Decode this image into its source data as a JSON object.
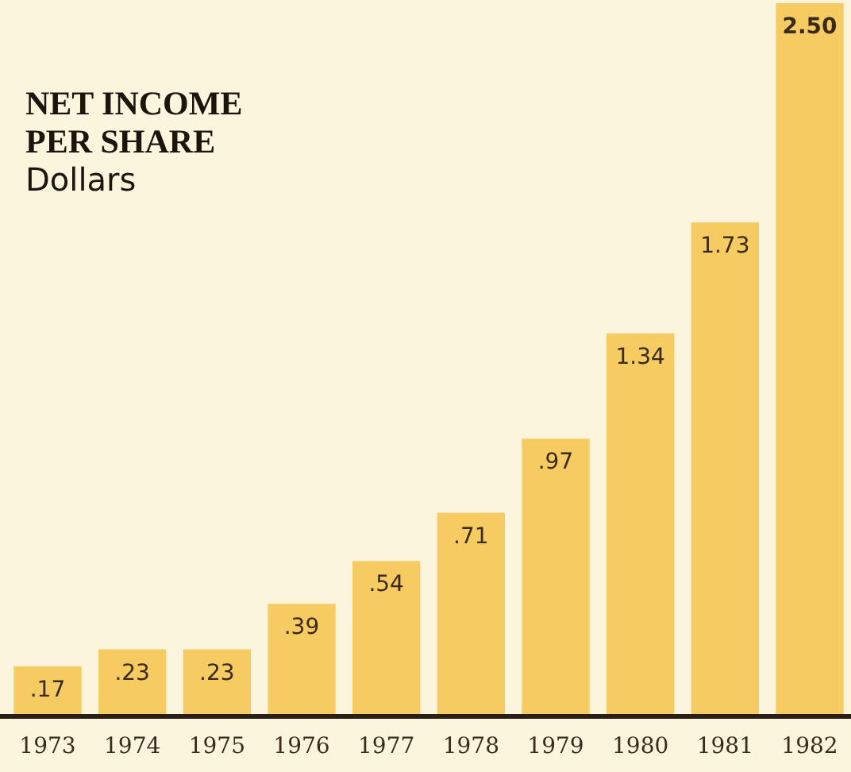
{
  "chart_data": {
    "type": "bar",
    "title": "NET INCOME\nPER SHARE",
    "subtitle": "Dollars",
    "categories": [
      "1973",
      "1974",
      "1975",
      "1976",
      "1977",
      "1978",
      "1979",
      "1980",
      "1981",
      "1982"
    ],
    "values": [
      0.17,
      0.23,
      0.23,
      0.39,
      0.54,
      0.71,
      0.97,
      1.34,
      1.73,
      2.5
    ],
    "value_labels": [
      ".17",
      ".23",
      ".23",
      ".39",
      ".54",
      ".71",
      ".97",
      "1.34",
      "1.73",
      "2.50"
    ],
    "color": "#f6cb62"
  }
}
